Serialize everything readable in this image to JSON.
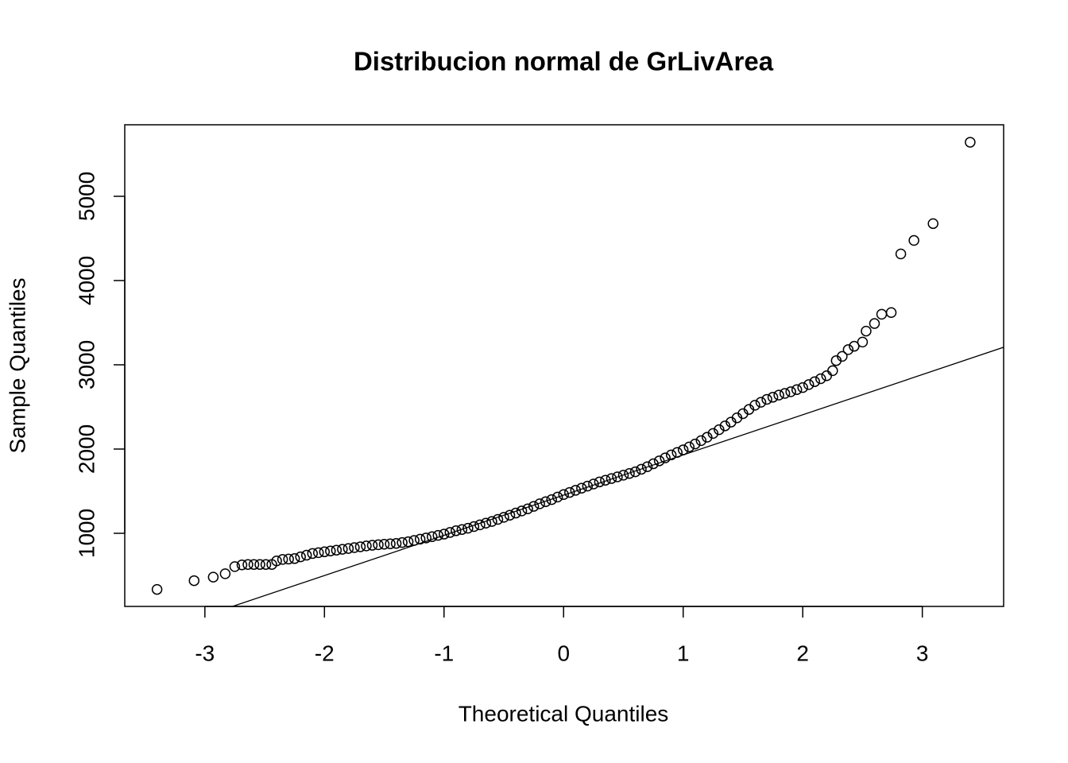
{
  "chart_data": {
    "type": "scatter",
    "title": "Distribucion normal de GrLivArea",
    "x_label": "Theoretical Quantiles",
    "y_label": "Sample Quantiles",
    "xlim": [
      -3.67,
      3.68
    ],
    "ylim": [
      132,
      5849
    ],
    "xticks": [
      -3,
      -2,
      -1,
      0,
      1,
      2,
      3
    ],
    "yticks": [
      1000,
      2000,
      3000,
      4000,
      5000
    ],
    "grid": false,
    "color": "#000000",
    "reference_line": {
      "intercept": 1453,
      "slope": 477
    },
    "x": [
      -3.4,
      -3.09,
      -2.93,
      -2.83,
      -2.75,
      -2.69,
      -2.64,
      -2.59,
      -2.54,
      -2.49,
      -2.44,
      -2.4,
      -2.35,
      -2.3,
      -2.25,
      -2.2,
      -2.15,
      -2.1,
      -2.05,
      -2.0,
      -1.95,
      -1.9,
      -1.85,
      -1.8,
      -1.75,
      -1.7,
      -1.65,
      -1.6,
      -1.55,
      -1.5,
      -1.45,
      -1.4,
      -1.35,
      -1.3,
      -1.25,
      -1.2,
      -1.15,
      -1.1,
      -1.05,
      -1.0,
      -0.95,
      -0.9,
      -0.85,
      -0.8,
      -0.75,
      -0.7,
      -0.65,
      -0.6,
      -0.55,
      -0.5,
      -0.45,
      -0.4,
      -0.35,
      -0.3,
      -0.25,
      -0.2,
      -0.15,
      -0.1,
      -0.05,
      0.0,
      0.05,
      0.1,
      0.15,
      0.2,
      0.25,
      0.3,
      0.35,
      0.4,
      0.45,
      0.5,
      0.55,
      0.6,
      0.65,
      0.7,
      0.75,
      0.8,
      0.85,
      0.9,
      0.95,
      1.0,
      1.05,
      1.1,
      1.15,
      1.2,
      1.25,
      1.3,
      1.35,
      1.4,
      1.45,
      1.5,
      1.55,
      1.6,
      1.65,
      1.7,
      1.75,
      1.8,
      1.85,
      1.9,
      1.95,
      2.0,
      2.05,
      2.1,
      2.15,
      2.2,
      2.25,
      2.28,
      2.33,
      2.38,
      2.43,
      2.5,
      2.53,
      2.6,
      2.66,
      2.74,
      2.82,
      2.93,
      3.09,
      3.4
    ],
    "y": [
      334,
      438,
      480,
      520,
      605,
      625,
      630,
      630,
      630,
      630,
      630,
      672,
      690,
      694,
      700,
      720,
      740,
      760,
      770,
      780,
      790,
      800,
      810,
      820,
      830,
      840,
      850,
      858,
      864,
      870,
      875,
      880,
      890,
      900,
      915,
      930,
      945,
      960,
      975,
      990,
      1010,
      1030,
      1045,
      1060,
      1080,
      1100,
      1120,
      1140,
      1165,
      1190,
      1215,
      1240,
      1265,
      1290,
      1320,
      1350,
      1375,
      1400,
      1430,
      1460,
      1485,
      1510,
      1535,
      1560,
      1585,
      1610,
      1630,
      1650,
      1670,
      1690,
      1710,
      1730,
      1760,
      1790,
      1825,
      1860,
      1895,
      1930,
      1960,
      1990,
      2025,
      2060,
      2100,
      2140,
      2185,
      2230,
      2275,
      2320,
      2370,
      2420,
      2470,
      2520,
      2555,
      2590,
      2615,
      2640,
      2660,
      2680,
      2705,
      2730,
      2765,
      2800,
      2835,
      2870,
      2930,
      3050,
      3100,
      3180,
      3220,
      3270,
      3400,
      3490,
      3600,
      3620,
      4316,
      4476,
      4676,
      5642
    ]
  }
}
